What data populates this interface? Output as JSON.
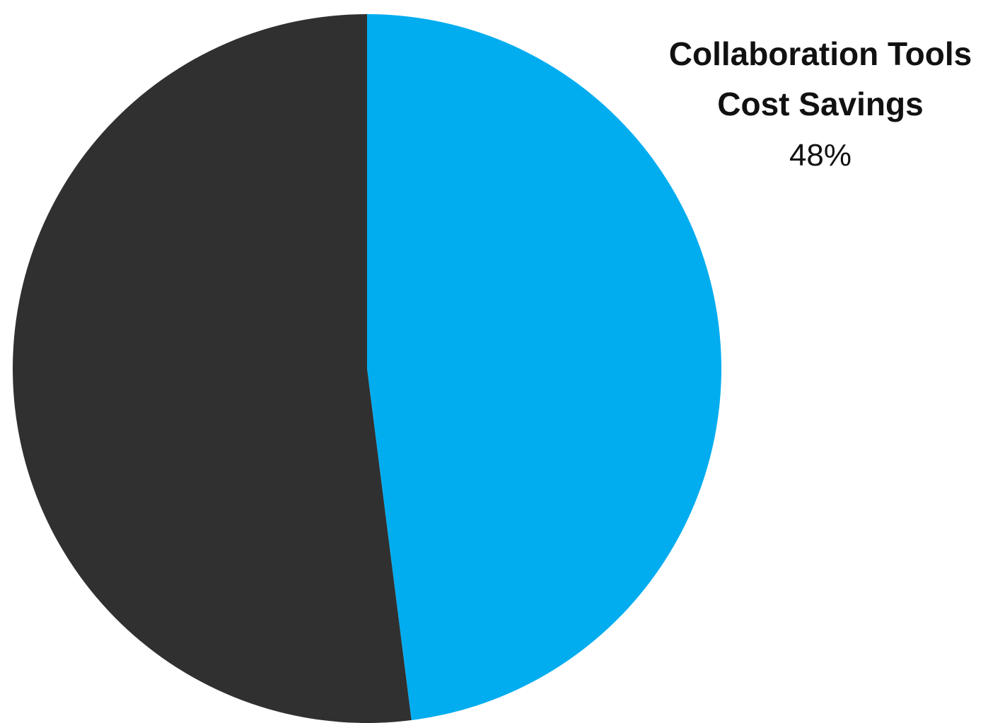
{
  "chart_data": {
    "type": "pie",
    "slices": [
      {
        "label_lines": [
          "Collaboration Tools",
          "Cost Savings"
        ],
        "value_label": "48%",
        "value": 48,
        "color": "#02ADEF"
      },
      {
        "label_lines": [],
        "value_label": "",
        "value": 52,
        "color": "#303030"
      }
    ],
    "start_angle_deg": 0,
    "direction": "clockwise"
  }
}
